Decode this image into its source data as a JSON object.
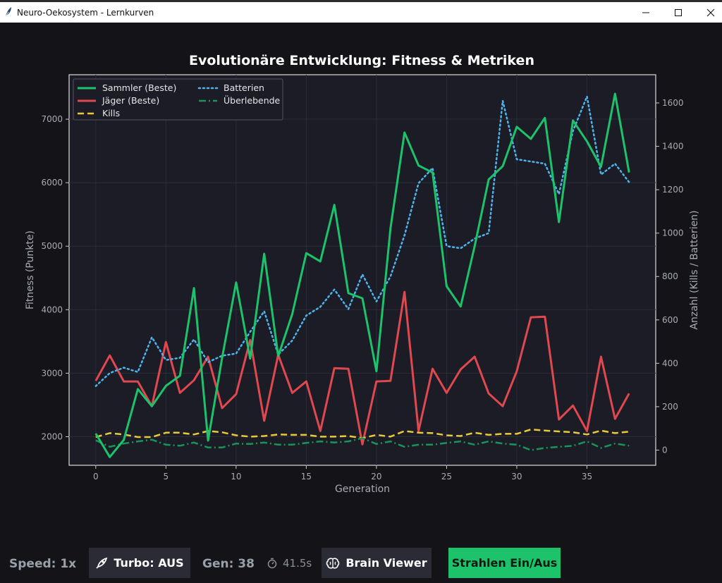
{
  "window": {
    "title": "Neuro-Oekosystem - Lernkurven"
  },
  "chart_data": {
    "type": "line",
    "title": "Evolutionäre Entwicklung: Fitness & Metriken",
    "xlabel": "Generation",
    "ylabel": "Fitness (Punkte)",
    "ylabel_right": "Anzahl (Kills / Batterien)",
    "xlim": [
      -1.9,
      39.9
    ],
    "ylim": [
      1550,
      7700
    ],
    "ylim_right": [
      -70,
      1730
    ],
    "x_ticks": [
      0,
      5,
      10,
      15,
      20,
      25,
      30,
      35
    ],
    "y_ticks": [
      2000,
      3000,
      4000,
      5000,
      6000,
      7000
    ],
    "y_ticks_right": [
      0,
      200,
      400,
      600,
      800,
      1000,
      1200,
      1400,
      1600
    ],
    "grid": true,
    "legend_position": "top-left",
    "x": [
      0,
      1,
      2,
      3,
      4,
      5,
      6,
      7,
      8,
      9,
      10,
      11,
      12,
      13,
      14,
      15,
      16,
      17,
      18,
      19,
      20,
      21,
      22,
      23,
      24,
      25,
      26,
      27,
      28,
      29,
      30,
      31,
      32,
      33,
      34,
      35,
      36,
      37,
      38
    ],
    "series": [
      {
        "name": "Sammler (Beste)",
        "axis": "left",
        "style": "solid",
        "color": "#1cc36a",
        "values": [
          2050,
          1680,
          1950,
          2750,
          2480,
          2800,
          2960,
          4340,
          1940,
          3240,
          4430,
          3230,
          4880,
          3270,
          3930,
          4890,
          4760,
          5650,
          4260,
          4180,
          3030,
          5280,
          6790,
          6270,
          6160,
          4370,
          4050,
          5000,
          6050,
          6260,
          6880,
          6690,
          7020,
          5380,
          6980,
          6650,
          6250,
          7400,
          6160
        ]
      },
      {
        "name": "Jäger (Beste)",
        "axis": "left",
        "style": "solid",
        "color": "#e0484f",
        "values": [
          2880,
          3280,
          2870,
          2870,
          2480,
          3490,
          2690,
          2890,
          3260,
          2450,
          2670,
          3520,
          2250,
          3290,
          2690,
          2870,
          2090,
          3080,
          3070,
          1880,
          2870,
          2880,
          4280,
          2090,
          3070,
          2690,
          3060,
          3260,
          2680,
          2480,
          3030,
          3880,
          3890,
          2270,
          2490,
          2090,
          3260,
          2280,
          2680
        ]
      },
      {
        "name": "Kills",
        "axis": "right",
        "style": "dashed",
        "color": "#e8c93a",
        "values": [
          60,
          78,
          72,
          60,
          60,
          80,
          80,
          72,
          88,
          82,
          68,
          62,
          65,
          72,
          70,
          70,
          62,
          62,
          65,
          55,
          70,
          62,
          88,
          80,
          78,
          68,
          65,
          80,
          70,
          75,
          75,
          95,
          90,
          86,
          82,
          72,
          90,
          78,
          85
        ]
      },
      {
        "name": "Batterien",
        "axis": "right",
        "style": "dotted",
        "color": "#4db5ec",
        "values": [
          295,
          355,
          380,
          360,
          520,
          415,
          425,
          510,
          405,
          435,
          445,
          545,
          640,
          440,
          505,
          620,
          660,
          740,
          650,
          810,
          685,
          800,
          990,
          1230,
          1300,
          940,
          930,
          975,
          1000,
          1610,
          1340,
          1330,
          1320,
          1180,
          1470,
          1630,
          1270,
          1320,
          1235
        ]
      },
      {
        "name": "Überlebende",
        "axis": "right",
        "style": "dashdot",
        "color": "#18945a",
        "values": [
          45,
          15,
          30,
          40,
          48,
          25,
          20,
          35,
          12,
          12,
          30,
          28,
          35,
          25,
          25,
          33,
          40,
          35,
          40,
          55,
          28,
          40,
          15,
          25,
          25,
          33,
          40,
          25,
          40,
          30,
          25,
          0,
          10,
          15,
          20,
          40,
          10,
          30,
          20
        ]
      }
    ]
  },
  "controls": {
    "speed_label": "Speed: 1x",
    "turbo_label": "Turbo: AUS",
    "gen_label": "Gen: 38",
    "timer_label": "41.5s",
    "brain_viewer_label": "Brain Viewer",
    "strahlen_label": "Strahlen Ein/Aus"
  }
}
